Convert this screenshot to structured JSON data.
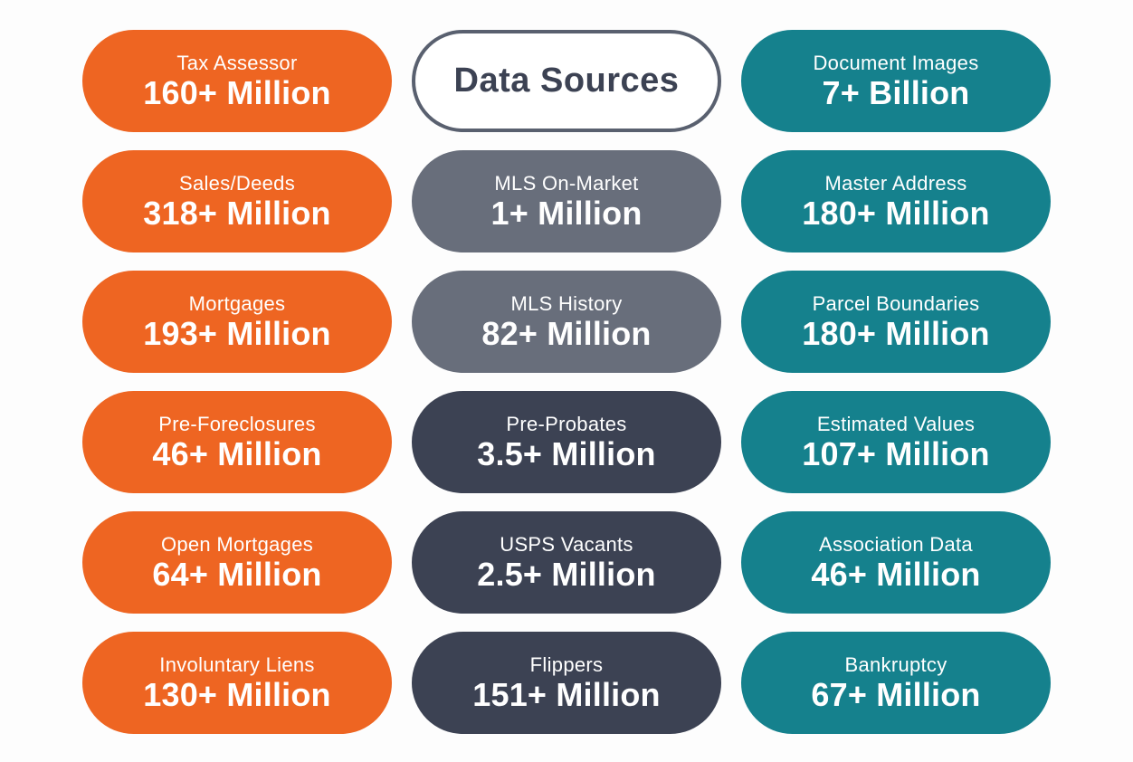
{
  "title": "Data Sources",
  "colors": {
    "orange": "#ee6522",
    "gray": "#686e7b",
    "navy": "#3c4253",
    "teal": "#15818d",
    "title_border": "#59606f"
  },
  "left_column": [
    {
      "label": "Tax Assessor",
      "value": "160+ Million"
    },
    {
      "label": "Sales/Deeds",
      "value": "318+ Million"
    },
    {
      "label": "Mortgages",
      "value": "193+ Million"
    },
    {
      "label": "Pre-Foreclosures",
      "value": "46+ Million"
    },
    {
      "label": "Open Mortgages",
      "value": "64+ Million"
    },
    {
      "label": "Involuntary Liens",
      "value": "130+ Million"
    }
  ],
  "middle_column": [
    {
      "label": "MLS On-Market",
      "value": "1+ Million"
    },
    {
      "label": "MLS History",
      "value": "82+ Million"
    },
    {
      "label": "Pre-Probates",
      "value": "3.5+ Million"
    },
    {
      "label": "USPS Vacants",
      "value": "2.5+ Million"
    },
    {
      "label": "Flippers",
      "value": "151+ Million"
    }
  ],
  "right_column": [
    {
      "label": "Document Images",
      "value": "7+ Billion"
    },
    {
      "label": "Master Address",
      "value": "180+ Million"
    },
    {
      "label": "Parcel Boundaries",
      "value": "180+ Million"
    },
    {
      "label": "Estimated Values",
      "value": "107+ Million"
    },
    {
      "label": "Association Data",
      "value": "46+ Million"
    },
    {
      "label": "Bankruptcy",
      "value": "67+ Million"
    }
  ]
}
